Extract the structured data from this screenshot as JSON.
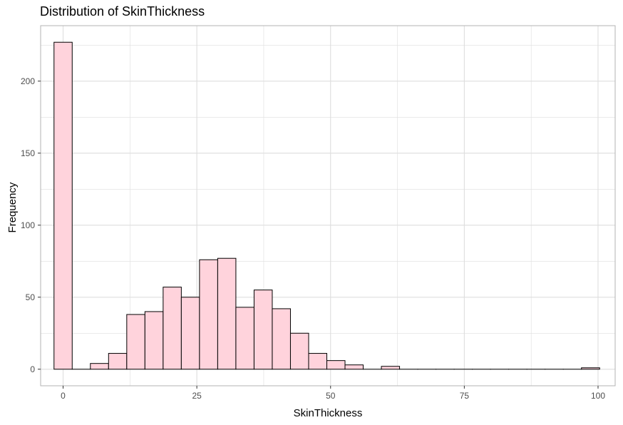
{
  "chart_data": {
    "type": "bar",
    "title": "Distribution of SkinThickness",
    "xlabel": "SkinThickness",
    "ylabel": "Frequency",
    "xlim": [
      -4.2,
      103.2
    ],
    "ylim": [
      -11.5,
      238.5
    ],
    "x_ticks": [
      0,
      25,
      50,
      75,
      100
    ],
    "y_ticks": [
      0,
      50,
      100,
      150,
      200
    ],
    "bin_width": 3.4,
    "bins": [
      {
        "start": -1.7,
        "end": 1.7,
        "value": 227
      },
      {
        "start": 1.7,
        "end": 5.1,
        "value": 0
      },
      {
        "start": 5.1,
        "end": 8.5,
        "value": 4
      },
      {
        "start": 8.5,
        "end": 11.9,
        "value": 11
      },
      {
        "start": 11.9,
        "end": 15.3,
        "value": 38
      },
      {
        "start": 15.3,
        "end": 18.7,
        "value": 40
      },
      {
        "start": 18.7,
        "end": 22.1,
        "value": 57
      },
      {
        "start": 22.1,
        "end": 25.5,
        "value": 50
      },
      {
        "start": 25.5,
        "end": 28.9,
        "value": 76
      },
      {
        "start": 28.9,
        "end": 32.3,
        "value": 77
      },
      {
        "start": 32.3,
        "end": 35.7,
        "value": 43
      },
      {
        "start": 35.7,
        "end": 39.1,
        "value": 55
      },
      {
        "start": 39.1,
        "end": 42.5,
        "value": 42
      },
      {
        "start": 42.5,
        "end": 45.9,
        "value": 25
      },
      {
        "start": 45.9,
        "end": 49.3,
        "value": 11
      },
      {
        "start": 49.3,
        "end": 52.7,
        "value": 6
      },
      {
        "start": 52.7,
        "end": 56.1,
        "value": 3
      },
      {
        "start": 56.1,
        "end": 59.5,
        "value": 0
      },
      {
        "start": 59.5,
        "end": 62.9,
        "value": 2
      },
      {
        "start": 62.9,
        "end": 66.3,
        "value": 0
      },
      {
        "start": 66.3,
        "end": 69.7,
        "value": 0
      },
      {
        "start": 69.7,
        "end": 73.1,
        "value": 0
      },
      {
        "start": 73.1,
        "end": 76.5,
        "value": 0
      },
      {
        "start": 76.5,
        "end": 79.9,
        "value": 0
      },
      {
        "start": 79.9,
        "end": 83.3,
        "value": 0
      },
      {
        "start": 83.3,
        "end": 86.7,
        "value": 0
      },
      {
        "start": 86.7,
        "end": 90.1,
        "value": 0
      },
      {
        "start": 90.1,
        "end": 93.5,
        "value": 0
      },
      {
        "start": 93.5,
        "end": 96.9,
        "value": 0
      },
      {
        "start": 96.9,
        "end": 100.3,
        "value": 1
      }
    ],
    "fill_color": "#ffd3dc",
    "edge_color": "#000000",
    "grid": true,
    "grid_color": "#dedede",
    "panel_border_color": "#b3b3b3",
    "tick_label_color": "#4d4d4d"
  }
}
